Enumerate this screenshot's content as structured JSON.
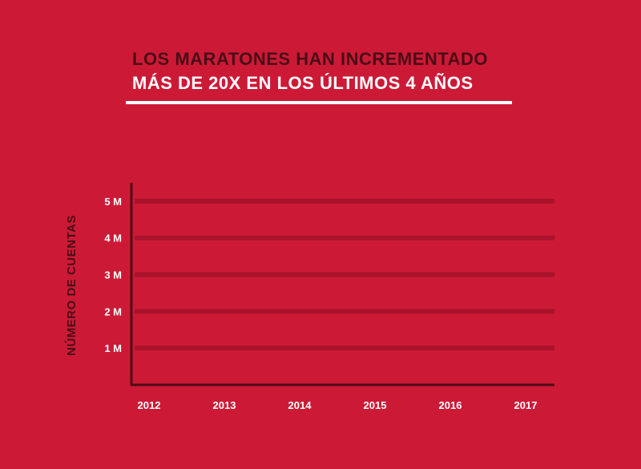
{
  "chart_data": {
    "type": "line",
    "title_line1": "LOS MARATONES HAN INCREMENTADO",
    "title_line2": "MÁS DE 20X EN LOS ÚLTIMOS 4 AÑOS",
    "ylabel": "NÚMERO DE CUENTAS",
    "xlabel": "",
    "categories": [
      "2012",
      "2013",
      "2014",
      "2015",
      "2016",
      "2017"
    ],
    "y_ticks": [
      {
        "value": 1,
        "label": "1 M"
      },
      {
        "value": 2,
        "label": "2 M"
      },
      {
        "value": 3,
        "label": "3 M"
      },
      {
        "value": 4,
        "label": "4 M"
      },
      {
        "value": 5,
        "label": "5 M"
      }
    ],
    "ylim": [
      0,
      5.5
    ],
    "grid": true,
    "series": [],
    "colors": {
      "background": "#cc1a36",
      "gridline": "#a9122a",
      "axis": "#4a0d17",
      "title_dark": "#4a0d17",
      "title_light": "#ffffff"
    }
  }
}
